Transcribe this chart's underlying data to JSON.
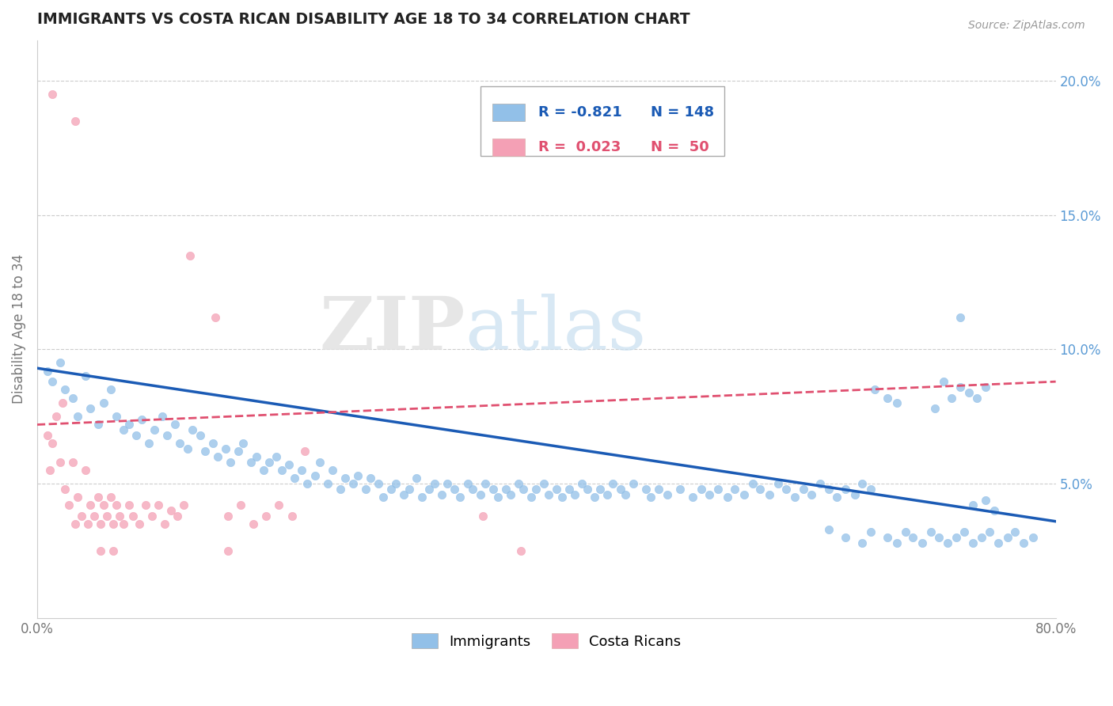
{
  "title": "IMMIGRANTS VS COSTA RICAN DISABILITY AGE 18 TO 34 CORRELATION CHART",
  "source": "Source: ZipAtlas.com",
  "ylabel": "Disability Age 18 to 34",
  "xlim": [
    0.0,
    0.8
  ],
  "ylim": [
    0.0,
    0.215
  ],
  "immigrants_R": -0.821,
  "immigrants_N": 148,
  "costaricans_R": 0.023,
  "costaricans_N": 50,
  "immigrants_color": "#92C0E8",
  "costaricans_color": "#F4A0B5",
  "immigrants_line_color": "#1B5BB5",
  "costaricans_line_color": "#E05070",
  "watermark_zip": "ZIP",
  "watermark_atlas": "atlas",
  "imm_line": [
    0.0,
    0.093,
    0.8,
    0.036
  ],
  "cr_line": [
    0.0,
    0.072,
    0.8,
    0.088
  ],
  "immigrants_scatter": [
    [
      0.008,
      0.092
    ],
    [
      0.012,
      0.088
    ],
    [
      0.018,
      0.095
    ],
    [
      0.022,
      0.085
    ],
    [
      0.028,
      0.082
    ],
    [
      0.032,
      0.075
    ],
    [
      0.038,
      0.09
    ],
    [
      0.042,
      0.078
    ],
    [
      0.048,
      0.072
    ],
    [
      0.052,
      0.08
    ],
    [
      0.058,
      0.085
    ],
    [
      0.062,
      0.075
    ],
    [
      0.068,
      0.07
    ],
    [
      0.072,
      0.072
    ],
    [
      0.078,
      0.068
    ],
    [
      0.082,
      0.074
    ],
    [
      0.088,
      0.065
    ],
    [
      0.092,
      0.07
    ],
    [
      0.098,
      0.075
    ],
    [
      0.102,
      0.068
    ],
    [
      0.108,
      0.072
    ],
    [
      0.112,
      0.065
    ],
    [
      0.118,
      0.063
    ],
    [
      0.122,
      0.07
    ],
    [
      0.128,
      0.068
    ],
    [
      0.132,
      0.062
    ],
    [
      0.138,
      0.065
    ],
    [
      0.142,
      0.06
    ],
    [
      0.148,
      0.063
    ],
    [
      0.152,
      0.058
    ],
    [
      0.158,
      0.062
    ],
    [
      0.162,
      0.065
    ],
    [
      0.168,
      0.058
    ],
    [
      0.172,
      0.06
    ],
    [
      0.178,
      0.055
    ],
    [
      0.182,
      0.058
    ],
    [
      0.188,
      0.06
    ],
    [
      0.192,
      0.055
    ],
    [
      0.198,
      0.057
    ],
    [
      0.202,
      0.052
    ],
    [
      0.208,
      0.055
    ],
    [
      0.212,
      0.05
    ],
    [
      0.218,
      0.053
    ],
    [
      0.222,
      0.058
    ],
    [
      0.228,
      0.05
    ],
    [
      0.232,
      0.055
    ],
    [
      0.238,
      0.048
    ],
    [
      0.242,
      0.052
    ],
    [
      0.248,
      0.05
    ],
    [
      0.252,
      0.053
    ],
    [
      0.258,
      0.048
    ],
    [
      0.262,
      0.052
    ],
    [
      0.268,
      0.05
    ],
    [
      0.272,
      0.045
    ],
    [
      0.278,
      0.048
    ],
    [
      0.282,
      0.05
    ],
    [
      0.288,
      0.046
    ],
    [
      0.292,
      0.048
    ],
    [
      0.298,
      0.052
    ],
    [
      0.302,
      0.045
    ],
    [
      0.308,
      0.048
    ],
    [
      0.312,
      0.05
    ],
    [
      0.318,
      0.046
    ],
    [
      0.322,
      0.05
    ],
    [
      0.328,
      0.048
    ],
    [
      0.332,
      0.045
    ],
    [
      0.338,
      0.05
    ],
    [
      0.342,
      0.048
    ],
    [
      0.348,
      0.046
    ],
    [
      0.352,
      0.05
    ],
    [
      0.358,
      0.048
    ],
    [
      0.362,
      0.045
    ],
    [
      0.368,
      0.048
    ],
    [
      0.372,
      0.046
    ],
    [
      0.378,
      0.05
    ],
    [
      0.382,
      0.048
    ],
    [
      0.388,
      0.045
    ],
    [
      0.392,
      0.048
    ],
    [
      0.398,
      0.05
    ],
    [
      0.402,
      0.046
    ],
    [
      0.408,
      0.048
    ],
    [
      0.412,
      0.045
    ],
    [
      0.418,
      0.048
    ],
    [
      0.422,
      0.046
    ],
    [
      0.428,
      0.05
    ],
    [
      0.432,
      0.048
    ],
    [
      0.438,
      0.045
    ],
    [
      0.442,
      0.048
    ],
    [
      0.448,
      0.046
    ],
    [
      0.452,
      0.05
    ],
    [
      0.458,
      0.048
    ],
    [
      0.462,
      0.046
    ],
    [
      0.468,
      0.05
    ],
    [
      0.478,
      0.048
    ],
    [
      0.482,
      0.045
    ],
    [
      0.488,
      0.048
    ],
    [
      0.495,
      0.046
    ],
    [
      0.505,
      0.048
    ],
    [
      0.515,
      0.045
    ],
    [
      0.522,
      0.048
    ],
    [
      0.528,
      0.046
    ],
    [
      0.535,
      0.048
    ],
    [
      0.542,
      0.045
    ],
    [
      0.548,
      0.048
    ],
    [
      0.555,
      0.046
    ],
    [
      0.562,
      0.05
    ],
    [
      0.568,
      0.048
    ],
    [
      0.575,
      0.046
    ],
    [
      0.582,
      0.05
    ],
    [
      0.588,
      0.048
    ],
    [
      0.595,
      0.045
    ],
    [
      0.602,
      0.048
    ],
    [
      0.608,
      0.046
    ],
    [
      0.615,
      0.05
    ],
    [
      0.622,
      0.048
    ],
    [
      0.628,
      0.045
    ],
    [
      0.635,
      0.048
    ],
    [
      0.642,
      0.046
    ],
    [
      0.648,
      0.05
    ],
    [
      0.655,
      0.048
    ],
    [
      0.622,
      0.033
    ],
    [
      0.635,
      0.03
    ],
    [
      0.648,
      0.028
    ],
    [
      0.655,
      0.032
    ],
    [
      0.668,
      0.03
    ],
    [
      0.675,
      0.028
    ],
    [
      0.682,
      0.032
    ],
    [
      0.688,
      0.03
    ],
    [
      0.695,
      0.028
    ],
    [
      0.702,
      0.032
    ],
    [
      0.708,
      0.03
    ],
    [
      0.715,
      0.028
    ],
    [
      0.722,
      0.03
    ],
    [
      0.728,
      0.032
    ],
    [
      0.735,
      0.028
    ],
    [
      0.742,
      0.03
    ],
    [
      0.748,
      0.032
    ],
    [
      0.755,
      0.028
    ],
    [
      0.762,
      0.03
    ],
    [
      0.768,
      0.032
    ],
    [
      0.775,
      0.028
    ],
    [
      0.782,
      0.03
    ],
    [
      0.658,
      0.085
    ],
    [
      0.668,
      0.082
    ],
    [
      0.675,
      0.08
    ],
    [
      0.705,
      0.078
    ],
    [
      0.712,
      0.088
    ],
    [
      0.718,
      0.082
    ],
    [
      0.725,
      0.086
    ],
    [
      0.732,
      0.084
    ],
    [
      0.738,
      0.082
    ],
    [
      0.745,
      0.086
    ],
    [
      0.725,
      0.112
    ],
    [
      0.735,
      0.042
    ],
    [
      0.745,
      0.044
    ],
    [
      0.752,
      0.04
    ]
  ],
  "costaricans_scatter": [
    [
      0.008,
      0.068
    ],
    [
      0.01,
      0.055
    ],
    [
      0.012,
      0.065
    ],
    [
      0.015,
      0.075
    ],
    [
      0.018,
      0.058
    ],
    [
      0.02,
      0.08
    ],
    [
      0.022,
      0.048
    ],
    [
      0.025,
      0.042
    ],
    [
      0.028,
      0.058
    ],
    [
      0.03,
      0.035
    ],
    [
      0.032,
      0.045
    ],
    [
      0.035,
      0.038
    ],
    [
      0.038,
      0.055
    ],
    [
      0.04,
      0.035
    ],
    [
      0.042,
      0.042
    ],
    [
      0.045,
      0.038
    ],
    [
      0.048,
      0.045
    ],
    [
      0.05,
      0.035
    ],
    [
      0.052,
      0.042
    ],
    [
      0.055,
      0.038
    ],
    [
      0.058,
      0.045
    ],
    [
      0.06,
      0.035
    ],
    [
      0.062,
      0.042
    ],
    [
      0.065,
      0.038
    ],
    [
      0.068,
      0.035
    ],
    [
      0.072,
      0.042
    ],
    [
      0.075,
      0.038
    ],
    [
      0.08,
      0.035
    ],
    [
      0.085,
      0.042
    ],
    [
      0.09,
      0.038
    ],
    [
      0.095,
      0.042
    ],
    [
      0.1,
      0.035
    ],
    [
      0.105,
      0.04
    ],
    [
      0.11,
      0.038
    ],
    [
      0.115,
      0.042
    ],
    [
      0.12,
      0.135
    ],
    [
      0.14,
      0.112
    ],
    [
      0.15,
      0.038
    ],
    [
      0.16,
      0.042
    ],
    [
      0.17,
      0.035
    ],
    [
      0.18,
      0.038
    ],
    [
      0.19,
      0.042
    ],
    [
      0.2,
      0.038
    ],
    [
      0.21,
      0.062
    ],
    [
      0.03,
      0.185
    ],
    [
      0.012,
      0.195
    ],
    [
      0.05,
      0.025
    ],
    [
      0.06,
      0.025
    ],
    [
      0.15,
      0.025
    ],
    [
      0.35,
      0.038
    ],
    [
      0.38,
      0.025
    ]
  ]
}
